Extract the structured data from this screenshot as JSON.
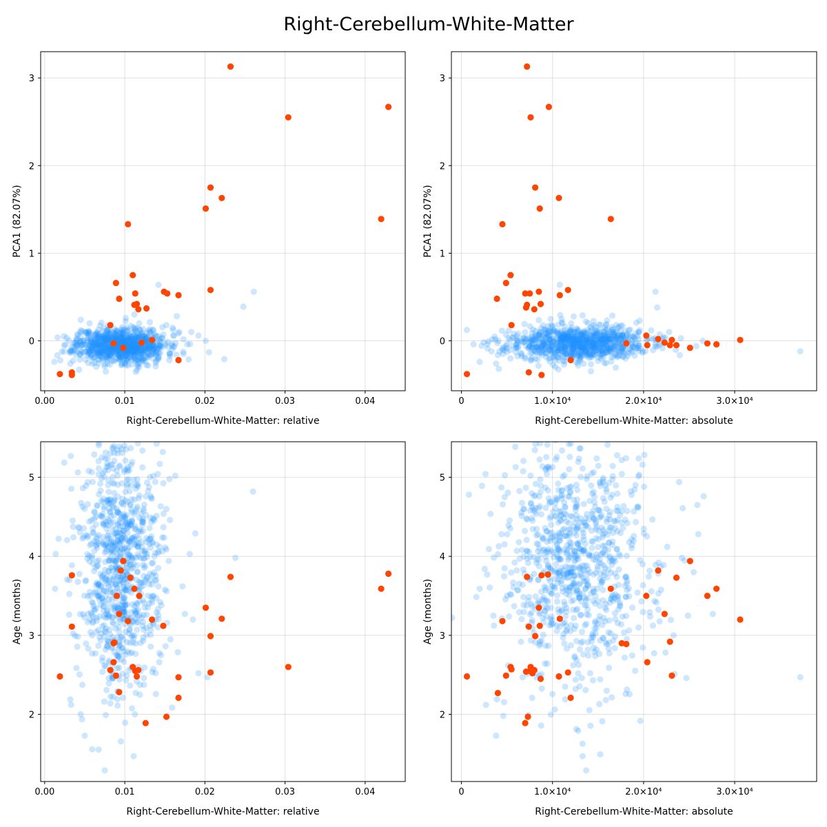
{
  "figure": {
    "title": "Right-Cerebellum-White-Matter",
    "colors": {
      "background_points": "#1e90ff",
      "highlight_points": "#ff4500"
    }
  },
  "chart_data": [
    {
      "type": "scatter",
      "xlabel": "Right-Cerebellum-White-Matter: relative",
      "ylabel": "PCA1 (82.07%)",
      "xlim": [
        -0.0005,
        0.045
      ],
      "ylim": [
        -0.57,
        3.3
      ],
      "xticks": [
        0,
        0.01,
        0.02,
        0.03,
        0.04
      ],
      "xtick_labels": [
        "0.00",
        "0.01",
        "0.02",
        "0.03",
        "0.04"
      ],
      "yticks": [
        0,
        1,
        2,
        3
      ],
      "ytick_labels": [
        "0",
        "1",
        "2",
        "3"
      ],
      "grid": true,
      "series": [
        {
          "role": "cohort",
          "cloud": {
            "n": 900,
            "x_center": 0.0095,
            "x_spread": 0.0028,
            "y_center": -0.05,
            "y_spread": 0.1,
            "seed": 11
          },
          "points": [
            [
              0.0012,
              -0.24
            ],
            [
              0.0032,
              -0.26
            ],
            [
              0.0043,
              -0.33
            ],
            [
              0.0045,
              0.12
            ],
            [
              0.0142,
              0.64
            ],
            [
              0.0165,
              0.28
            ],
            [
              0.0183,
              0.1
            ],
            [
              0.0201,
              0.0
            ],
            [
              0.0205,
              -0.13
            ],
            [
              0.0248,
              0.39
            ],
            [
              0.0261,
              0.56
            ],
            [
              0.0112,
              0.3
            ],
            [
              0.0118,
              0.2
            ],
            [
              0.0152,
              0.18
            ],
            [
              0.0135,
              0.12
            ],
            [
              0.0078,
              0.12
            ],
            [
              0.0062,
              -0.25
            ],
            [
              0.0192,
              0.06
            ],
            [
              0.0178,
              -0.04
            ],
            [
              0.0168,
              0.1
            ]
          ]
        },
        {
          "role": "highlighted",
          "points": [
            [
              0.0019,
              -0.38
            ],
            [
              0.0034,
              -0.36
            ],
            [
              0.0034,
              -0.39
            ],
            [
              0.0082,
              0.18
            ],
            [
              0.0086,
              -0.03
            ],
            [
              0.0089,
              0.66
            ],
            [
              0.0093,
              0.48
            ],
            [
              0.0104,
              1.33
            ],
            [
              0.011,
              0.75
            ],
            [
              0.0112,
              0.41
            ],
            [
              0.0113,
              0.54
            ],
            [
              0.0115,
              0.42
            ],
            [
              0.0117,
              0.36
            ],
            [
              0.0127,
              0.37
            ],
            [
              0.0134,
              0.01
            ],
            [
              0.0149,
              0.56
            ],
            [
              0.0153,
              0.54
            ],
            [
              0.0167,
              0.52
            ],
            [
              0.0167,
              -0.22
            ],
            [
              0.0201,
              1.51
            ],
            [
              0.0207,
              1.75
            ],
            [
              0.0207,
              0.58
            ],
            [
              0.0221,
              1.63
            ],
            [
              0.0232,
              3.13
            ],
            [
              0.0304,
              2.55
            ],
            [
              0.042,
              1.39
            ],
            [
              0.0429,
              2.67
            ],
            [
              0.0098,
              -0.08
            ],
            [
              0.0121,
              -0.02
            ]
          ]
        }
      ]
    },
    {
      "type": "scatter",
      "xlabel": "Right-Cerebellum-White-Matter: absolute",
      "ylabel": "PCA1 (82.07%)",
      "xlim": [
        -1100,
        39000
      ],
      "ylim": [
        -0.57,
        3.3
      ],
      "xticks": [
        0,
        10000,
        20000,
        30000
      ],
      "xtick_labels": [
        "0",
        "1.0×10⁴",
        "2.0×10⁴",
        "3.0×10⁴"
      ],
      "yticks": [
        0,
        1,
        2,
        3
      ],
      "ytick_labels": [
        "0",
        "1",
        "2",
        "3"
      ],
      "grid": true,
      "series": [
        {
          "role": "cohort",
          "cloud": {
            "n": 900,
            "x_center": 12500,
            "x_spread": 3800,
            "y_center": -0.03,
            "y_spread": 0.1,
            "seed": 23
          },
          "points": [
            [
              2000,
              -0.24
            ],
            [
              3300,
              -0.12
            ],
            [
              3800,
              -0.26
            ],
            [
              4100,
              -0.32
            ],
            [
              10800,
              0.64
            ],
            [
              13300,
              0.29
            ],
            [
              19500,
              0.1
            ],
            [
              21300,
              0.56
            ],
            [
              21500,
              0.38
            ],
            [
              24100,
              0.03
            ],
            [
              26500,
              0.0
            ],
            [
              37200,
              -0.12
            ],
            [
              5200,
              0.12
            ],
            [
              6200,
              -0.08
            ],
            [
              9800,
              0.25
            ],
            [
              17000,
              0.18
            ],
            [
              22800,
              0.1
            ],
            [
              25800,
              -0.06
            ],
            [
              20200,
              -0.12
            ],
            [
              16800,
              0.08
            ]
          ]
        },
        {
          "role": "highlighted",
          "points": [
            [
              600,
              -0.38
            ],
            [
              3900,
              0.48
            ],
            [
              4500,
              1.33
            ],
            [
              4900,
              0.66
            ],
            [
              5400,
              0.75
            ],
            [
              5500,
              0.18
            ],
            [
              7000,
              0.54
            ],
            [
              7100,
              0.38
            ],
            [
              7200,
              0.41
            ],
            [
              7200,
              3.13
            ],
            [
              7400,
              -0.36
            ],
            [
              7500,
              0.54
            ],
            [
              7600,
              2.55
            ],
            [
              8000,
              0.36
            ],
            [
              8100,
              1.75
            ],
            [
              8500,
              0.56
            ],
            [
              8600,
              1.51
            ],
            [
              8700,
              0.42
            ],
            [
              8800,
              -0.39
            ],
            [
              9600,
              2.67
            ],
            [
              10700,
              1.63
            ],
            [
              10800,
              0.52
            ],
            [
              11700,
              0.58
            ],
            [
              12000,
              -0.22
            ],
            [
              16400,
              1.39
            ],
            [
              18100,
              -0.03
            ],
            [
              20300,
              0.06
            ],
            [
              20400,
              -0.05
            ],
            [
              21600,
              0.02
            ],
            [
              22300,
              -0.02
            ],
            [
              22900,
              -0.05
            ],
            [
              23100,
              0.01
            ],
            [
              23600,
              -0.05
            ],
            [
              25100,
              -0.08
            ],
            [
              27000,
              -0.03
            ],
            [
              28000,
              -0.04
            ],
            [
              30600,
              0.01
            ]
          ]
        }
      ]
    },
    {
      "type": "scatter",
      "xlabel": "Right-Cerebellum-White-Matter: relative",
      "ylabel": "Age (months)",
      "xlim": [
        -0.0005,
        0.045
      ],
      "ylim": [
        1.15,
        5.45
      ],
      "xticks": [
        0,
        0.01,
        0.02,
        0.03,
        0.04
      ],
      "xtick_labels": [
        "0.00",
        "0.01",
        "0.02",
        "0.03",
        "0.04"
      ],
      "yticks": [
        2,
        3,
        4,
        5
      ],
      "ytick_labels": [
        "2",
        "3",
        "4",
        "5"
      ],
      "grid": true,
      "series": [
        {
          "role": "cohort",
          "cloud": {
            "n": 900,
            "x_center": 0.0095,
            "x_spread": 0.0025,
            "y_center": 3.9,
            "y_spread": 0.8,
            "seed": 37
          },
          "points": [
            [
              0.0013,
              3.59
            ],
            [
              0.0032,
              2.19
            ],
            [
              0.0033,
              2.12
            ],
            [
              0.0045,
              2.0
            ],
            [
              0.005,
              1.73
            ],
            [
              0.0075,
              1.29
            ],
            [
              0.0111,
              1.47
            ],
            [
              0.0238,
              3.98
            ],
            [
              0.026,
              4.82
            ],
            [
              0.0163,
              5.02
            ],
            [
              0.0188,
              4.29
            ],
            [
              0.0181,
              4.03
            ],
            [
              0.0175,
              3.27
            ],
            [
              0.0192,
              2.52
            ],
            [
              0.0203,
              2.47
            ],
            [
              0.0185,
              3.2
            ],
            [
              0.0172,
              3.62
            ],
            [
              0.0143,
              2.66
            ],
            [
              0.0157,
              2.95
            ],
            [
              0.0055,
              5.08
            ]
          ]
        },
        {
          "role": "highlighted",
          "points": [
            [
              0.0019,
              2.48
            ],
            [
              0.0034,
              3.76
            ],
            [
              0.0034,
              3.11
            ],
            [
              0.0082,
              2.56
            ],
            [
              0.0086,
              2.9
            ],
            [
              0.0086,
              2.66
            ],
            [
              0.0089,
              2.49
            ],
            [
              0.009,
              3.5
            ],
            [
              0.0093,
              3.27
            ],
            [
              0.0093,
              2.28
            ],
            [
              0.0095,
              3.82
            ],
            [
              0.0098,
              3.94
            ],
            [
              0.0104,
              3.18
            ],
            [
              0.0107,
              3.73
            ],
            [
              0.011,
              2.6
            ],
            [
              0.0112,
              3.59
            ],
            [
              0.0113,
              2.55
            ],
            [
              0.0115,
              2.48
            ],
            [
              0.0117,
              2.56
            ],
            [
              0.0118,
              3.5
            ],
            [
              0.0126,
              1.89
            ],
            [
              0.0134,
              3.2
            ],
            [
              0.0148,
              3.12
            ],
            [
              0.0152,
              1.97
            ],
            [
              0.0167,
              2.47
            ],
            [
              0.0167,
              2.21
            ],
            [
              0.0201,
              3.35
            ],
            [
              0.0207,
              2.53
            ],
            [
              0.0207,
              2.99
            ],
            [
              0.0221,
              3.21
            ],
            [
              0.0232,
              3.74
            ],
            [
              0.0304,
              2.6
            ],
            [
              0.042,
              3.59
            ],
            [
              0.0429,
              3.78
            ],
            [
              0.0087,
              2.91
            ]
          ]
        }
      ]
    },
    {
      "type": "scatter",
      "xlabel": "Right-Cerebellum-White-Matter: absolute",
      "ylabel": "Age (months)",
      "xlim": [
        -1100,
        39000
      ],
      "ylim": [
        1.15,
        5.45
      ],
      "xticks": [
        0,
        10000,
        20000,
        30000
      ],
      "xtick_labels": [
        "0",
        "1.0×10⁴",
        "2.0×10⁴",
        "3.0×10⁴"
      ],
      "yticks": [
        2,
        3,
        4,
        5
      ],
      "ytick_labels": [
        "2",
        "3",
        "4",
        "5"
      ],
      "grid": true,
      "series": [
        {
          "role": "cohort",
          "cloud": {
            "n": 900,
            "x_center": 12800,
            "x_spread": 4200,
            "y_center": 3.9,
            "y_spread": 0.8,
            "seed": 53
          },
          "points": [
            [
              2000,
              3.59
            ],
            [
              2700,
              2.12
            ],
            [
              3800,
              1.73
            ],
            [
              3900,
              2.19
            ],
            [
              4400,
              4.28
            ],
            [
              4600,
              1.98
            ],
            [
              6800,
              4.6
            ],
            [
              13300,
              1.47
            ],
            [
              13700,
              1.29
            ],
            [
              37200,
              2.47
            ],
            [
              26600,
              4.76
            ],
            [
              25900,
              4.65
            ],
            [
              26000,
              4.28
            ],
            [
              27600,
              3.27
            ],
            [
              25500,
              3.8
            ],
            [
              24200,
              3.98
            ],
            [
              23300,
              3.0
            ],
            [
              23900,
              4.94
            ],
            [
              22600,
              4.12
            ],
            [
              24700,
              2.46
            ]
          ]
        },
        {
          "role": "highlighted",
          "points": [
            [
              600,
              2.48
            ],
            [
              4000,
              2.27
            ],
            [
              4500,
              3.18
            ],
            [
              4900,
              2.49
            ],
            [
              5400,
              2.6
            ],
            [
              5500,
              2.57
            ],
            [
              7000,
              1.89
            ],
            [
              7100,
              2.54
            ],
            [
              7200,
              3.74
            ],
            [
              7300,
              1.97
            ],
            [
              7400,
              3.11
            ],
            [
              7500,
              2.55
            ],
            [
              7600,
              2.6
            ],
            [
              7800,
              2.52
            ],
            [
              8000,
              2.56
            ],
            [
              8100,
              2.99
            ],
            [
              8500,
              3.35
            ],
            [
              8600,
              3.12
            ],
            [
              8700,
              2.45
            ],
            [
              8800,
              3.76
            ],
            [
              9500,
              3.77
            ],
            [
              10700,
              2.48
            ],
            [
              10800,
              3.21
            ],
            [
              11700,
              2.53
            ],
            [
              12000,
              2.21
            ],
            [
              16400,
              3.59
            ],
            [
              17600,
              2.9
            ],
            [
              18100,
              2.89
            ],
            [
              20300,
              3.5
            ],
            [
              20400,
              2.66
            ],
            [
              21600,
              3.82
            ],
            [
              22300,
              3.27
            ],
            [
              22900,
              2.92
            ],
            [
              23100,
              2.49
            ],
            [
              23600,
              3.73
            ],
            [
              25100,
              3.94
            ],
            [
              27000,
              3.5
            ],
            [
              28000,
              3.59
            ],
            [
              30600,
              3.2
            ]
          ]
        }
      ]
    }
  ]
}
